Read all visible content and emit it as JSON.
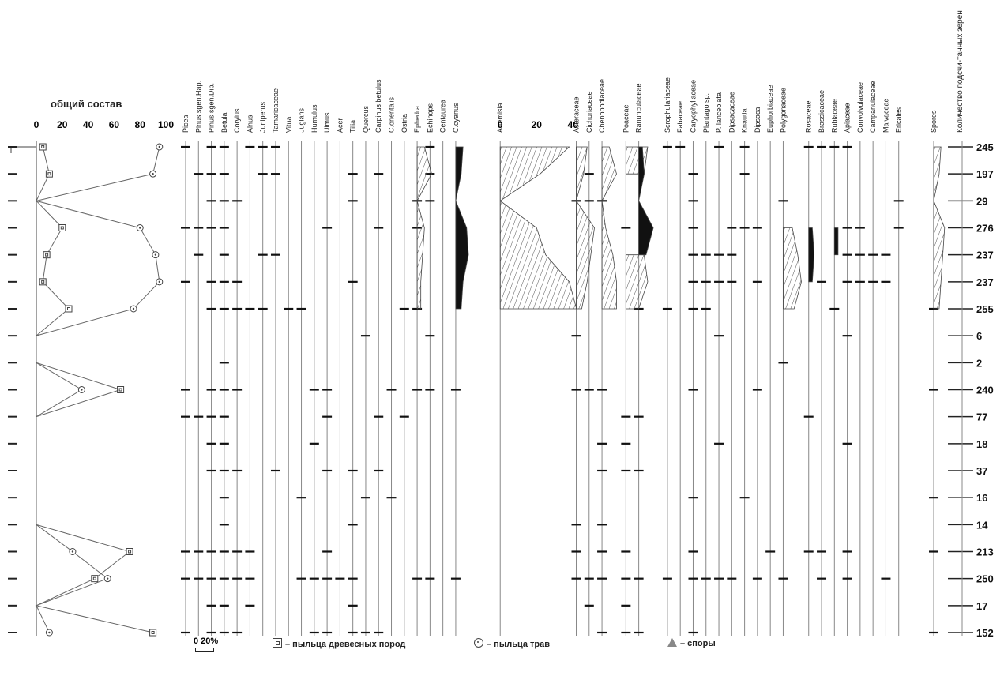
{
  "chart_data": {
    "type": "pollen-diagram",
    "summary_panel": {
      "title": "общий состав",
      "ticks": [
        "0",
        "20",
        "40",
        "60",
        "80",
        "100"
      ],
      "tree_pollen": [
        5,
        10,
        0,
        20,
        8,
        5,
        25,
        0,
        0,
        65,
        0,
        0,
        0,
        0,
        0,
        72,
        45,
        0,
        90
      ],
      "herb_pollen": [
        95,
        90,
        0,
        80,
        92,
        95,
        75,
        0,
        0,
        35,
        0,
        0,
        0,
        0,
        0,
        28,
        55,
        0,
        10
      ],
      "spores": [
        0,
        0,
        0,
        0,
        2,
        0,
        0,
        0,
        0,
        0,
        0,
        0,
        0,
        0,
        0,
        0,
        0,
        0,
        0
      ],
      "tree_pollen_row_labels": [
        "",
        "",
        "",
        "",
        "",
        "",
        "",
        "",
        "",
        "",
        "",
        "",
        "",
        "",
        "",
        "",
        "",
        "",
        ""
      ]
    },
    "taxa": [
      "Picea",
      "Pinus sgen.Hap.",
      "Pinus sgen.Dip.",
      "Betula",
      "Corylus",
      "Alnus",
      "Juniperus",
      "Tamaricaceae",
      "Vitua",
      "Juglans",
      "Humulus",
      "Ulmus",
      "Acer",
      "Tilia",
      "Quercus",
      "Carpinus betulus",
      "C.orientalis",
      "Ostria",
      "Ephedra",
      "Echinops",
      "Centaurea",
      "C.cyanus",
      "Artemisia",
      "Asteraceae",
      "Cichoriaceae",
      "Chenopodiaceae",
      "Poaceae",
      "Ranunculaceae",
      "Scrophulariaceae",
      "Fabaceae",
      "Caryophyllaceae",
      "Plantago sp.",
      "P. lanceolata",
      "Dipsacaceae",
      "Knautia",
      "Dipsaca",
      "Euphorbiaceae",
      "Polygonaceae",
      "Rosaceae",
      "Brassicaceae",
      "Rubiaceae",
      "Apiaceae",
      "Convolvulaceae",
      "Campanulaceae",
      "Malvaceae",
      "Ericales",
      "Spores"
    ],
    "artemisia_ticks": [
      "0",
      "20",
      "40"
    ],
    "count_header": "Количество подсчи-танных зерен",
    "counts": [
      "245",
      "197",
      "29",
      "276",
      "237",
      "237",
      "255",
      "6",
      "2",
      "240",
      "77",
      "18",
      "37",
      "16",
      "14",
      "213",
      "250",
      "17",
      "152"
    ],
    "presence": {
      "Picea": [
        1,
        0,
        0,
        1,
        0,
        1,
        0,
        0,
        0,
        1,
        1,
        0,
        0,
        0,
        0,
        1,
        1,
        0,
        1
      ],
      "Pinus sgen.Hap.": [
        0,
        1,
        0,
        1,
        1,
        0,
        0,
        0,
        0,
        0,
        1,
        0,
        0,
        0,
        0,
        1,
        1,
        0,
        0
      ],
      "Pinus sgen.Dip.": [
        1,
        1,
        1,
        1,
        0,
        1,
        1,
        0,
        0,
        1,
        1,
        1,
        1,
        0,
        0,
        1,
        1,
        1,
        1
      ],
      "Betula": [
        1,
        1,
        1,
        1,
        1,
        1,
        1,
        0,
        1,
        1,
        1,
        1,
        1,
        1,
        1,
        1,
        1,
        1,
        1
      ],
      "Corylus": [
        0,
        0,
        1,
        0,
        0,
        1,
        1,
        0,
        0,
        1,
        0,
        0,
        1,
        0,
        0,
        1,
        1,
        0,
        1
      ],
      "Alnus": [
        1,
        0,
        0,
        0,
        0,
        0,
        1,
        0,
        0,
        0,
        0,
        0,
        0,
        0,
        0,
        1,
        1,
        1,
        0
      ],
      "Juniperus": [
        1,
        1,
        0,
        0,
        1,
        0,
        1,
        0,
        0,
        0,
        0,
        0,
        0,
        0,
        0,
        0,
        0,
        0,
        0
      ],
      "Tamaricaceae": [
        1,
        1,
        0,
        0,
        1,
        0,
        0,
        0,
        0,
        0,
        0,
        0,
        1,
        0,
        0,
        0,
        0,
        0,
        0
      ],
      "Vitua": [
        0,
        0,
        0,
        0,
        0,
        0,
        1,
        0,
        0,
        0,
        0,
        0,
        0,
        0,
        0,
        0,
        0,
        0,
        0
      ],
      "Juglans": [
        0,
        0,
        0,
        0,
        0,
        0,
        1,
        0,
        0,
        0,
        0,
        0,
        0,
        1,
        0,
        0,
        1,
        0,
        0
      ],
      "Humulus": [
        0,
        0,
        0,
        0,
        0,
        0,
        0,
        0,
        0,
        1,
        0,
        1,
        0,
        0,
        0,
        0,
        1,
        0,
        1
      ],
      "Ulmus": [
        0,
        0,
        0,
        1,
        0,
        0,
        0,
        0,
        0,
        1,
        1,
        0,
        1,
        0,
        0,
        1,
        1,
        0,
        1
      ],
      "Acer": [
        0,
        0,
        0,
        0,
        0,
        0,
        0,
        0,
        0,
        0,
        0,
        0,
        0,
        0,
        0,
        0,
        1,
        0,
        0
      ],
      "Tilia": [
        0,
        1,
        1,
        0,
        0,
        1,
        0,
        0,
        0,
        0,
        0,
        0,
        1,
        0,
        1,
        0,
        1,
        1,
        1
      ],
      "Quercus": [
        0,
        0,
        0,
        0,
        0,
        0,
        0,
        1,
        0,
        0,
        0,
        0,
        0,
        1,
        0,
        0,
        0,
        0,
        1
      ],
      "Carpinus betulus": [
        0,
        1,
        0,
        1,
        0,
        0,
        0,
        0,
        0,
        0,
        1,
        0,
        1,
        0,
        0,
        0,
        0,
        0,
        1
      ],
      "C.orientalis": [
        0,
        0,
        0,
        0,
        0,
        0,
        0,
        0,
        0,
        1,
        0,
        0,
        0,
        1,
        0,
        0,
        0,
        0,
        0
      ],
      "Ostria": [
        0,
        0,
        0,
        0,
        0,
        0,
        1,
        0,
        0,
        0,
        1,
        0,
        0,
        0,
        0,
        0,
        0,
        0,
        0
      ],
      "Ephedra": [
        0,
        0,
        1,
        1,
        0,
        0,
        1,
        0,
        0,
        1,
        0,
        0,
        0,
        0,
        0,
        0,
        1,
        0,
        0
      ],
      "Echinops": [
        1,
        1,
        1,
        0,
        0,
        0,
        0,
        1,
        0,
        1,
        0,
        0,
        0,
        0,
        0,
        0,
        1,
        0,
        0
      ],
      "C.cyanus": [
        0,
        0,
        0,
        0,
        0,
        0,
        0,
        0,
        0,
        1,
        0,
        0,
        0,
        0,
        0,
        0,
        1,
        0,
        0
      ],
      "Asteraceae": [
        0,
        0,
        1,
        0,
        0,
        0,
        0,
        1,
        0,
        1,
        0,
        0,
        0,
        0,
        1,
        1,
        1,
        0,
        0
      ],
      "Cichoriaceae": [
        0,
        1,
        1,
        0,
        0,
        0,
        0,
        0,
        0,
        1,
        0,
        0,
        0,
        0,
        0,
        0,
        1,
        1,
        0
      ],
      "Chenopodiaceae": [
        0,
        0,
        1,
        0,
        0,
        0,
        0,
        0,
        0,
        1,
        0,
        1,
        1,
        0,
        1,
        1,
        1,
        0,
        1
      ],
      "Poaceae": [
        0,
        0,
        0,
        1,
        0,
        0,
        0,
        0,
        0,
        0,
        1,
        1,
        1,
        0,
        0,
        1,
        1,
        1,
        1
      ],
      "Ranunculaceae": [
        0,
        0,
        0,
        0,
        0,
        0,
        1,
        0,
        0,
        0,
        1,
        0,
        1,
        0,
        0,
        0,
        1,
        0,
        1
      ],
      "Scrophulariaceae": [
        1,
        0,
        0,
        0,
        0,
        0,
        1,
        0,
        0,
        0,
        0,
        0,
        0,
        0,
        0,
        0,
        1,
        0,
        0
      ],
      "Fabaceae": [
        1,
        0,
        0,
        0,
        0,
        0,
        0,
        0,
        0,
        0,
        0,
        0,
        0,
        0,
        0,
        0,
        0,
        0,
        0
      ],
      "Caryophyllaceae": [
        0,
        1,
        1,
        1,
        1,
        1,
        1,
        0,
        0,
        1,
        0,
        0,
        0,
        1,
        0,
        1,
        1,
        0,
        1
      ],
      "Plantago sp.": [
        0,
        0,
        0,
        0,
        1,
        1,
        1,
        0,
        0,
        0,
        0,
        0,
        0,
        0,
        0,
        0,
        1,
        0,
        0
      ],
      "P. lanceolata": [
        1,
        0,
        0,
        0,
        1,
        1,
        0,
        1,
        0,
        0,
        0,
        1,
        0,
        0,
        0,
        0,
        1,
        0,
        0
      ],
      "Dipsacaceae": [
        0,
        0,
        0,
        1,
        1,
        1,
        0,
        0,
        0,
        0,
        0,
        0,
        0,
        0,
        0,
        0,
        1,
        0,
        0
      ],
      "Knautia": [
        1,
        1,
        0,
        1,
        0,
        0,
        0,
        0,
        0,
        0,
        0,
        0,
        0,
        1,
        0,
        0,
        0,
        0,
        0
      ],
      "Dipsaca": [
        0,
        0,
        0,
        1,
        0,
        1,
        0,
        0,
        0,
        1,
        0,
        0,
        0,
        0,
        0,
        0,
        1,
        0,
        0
      ],
      "Euphorbiaceae": [
        0,
        0,
        0,
        0,
        0,
        0,
        0,
        0,
        0,
        0,
        0,
        0,
        0,
        0,
        0,
        1,
        0,
        0,
        0
      ],
      "Polygonaceae": [
        0,
        0,
        1,
        0,
        0,
        0,
        0,
        0,
        1,
        0,
        0,
        0,
        0,
        0,
        0,
        0,
        1,
        0,
        0
      ],
      "Rosaceae": [
        1,
        0,
        0,
        0,
        0,
        0,
        0,
        0,
        0,
        0,
        1,
        0,
        0,
        0,
        0,
        1,
        0,
        0,
        0
      ],
      "Brassicaceae": [
        1,
        0,
        0,
        0,
        0,
        1,
        0,
        0,
        0,
        0,
        0,
        0,
        0,
        0,
        0,
        1,
        1,
        0,
        0
      ],
      "Rubiaceae": [
        1,
        0,
        0,
        0,
        0,
        0,
        1,
        0,
        0,
        0,
        0,
        0,
        0,
        0,
        0,
        0,
        0,
        0,
        0
      ],
      "Apiaceae": [
        1,
        0,
        0,
        1,
        1,
        1,
        0,
        1,
        0,
        0,
        0,
        1,
        0,
        0,
        0,
        1,
        1,
        0,
        0
      ],
      "Convolvulaceae": [
        0,
        0,
        0,
        1,
        1,
        1,
        0,
        0,
        0,
        0,
        0,
        0,
        0,
        0,
        0,
        0,
        0,
        0,
        0
      ],
      "Campanulaceae": [
        0,
        0,
        0,
        0,
        1,
        1,
        0,
        0,
        0,
        0,
        0,
        0,
        0,
        0,
        0,
        0,
        0,
        0,
        0
      ],
      "Malvaceae": [
        0,
        0,
        0,
        0,
        1,
        1,
        0,
        0,
        0,
        0,
        0,
        0,
        0,
        0,
        0,
        0,
        1,
        0,
        0
      ],
      "Ericales": [
        0,
        0,
        1,
        1,
        0,
        0,
        0,
        0,
        0,
        0,
        0,
        0,
        0,
        0,
        0,
        0,
        0,
        0,
        0
      ],
      "Spores": [
        0,
        0,
        0,
        0,
        0,
        0,
        1,
        0,
        0,
        1,
        0,
        0,
        0,
        1,
        0,
        1,
        0,
        0,
        1
      ]
    },
    "curves": {
      "Ephedra": {
        "fill": "hatch",
        "values": [
          4,
          8,
          0,
          4,
          3,
          2,
          2,
          0,
          0,
          0,
          0,
          0,
          0,
          0,
          0,
          0,
          0,
          0,
          0
        ]
      },
      "Centaurea": {
        "fill": "black",
        "values": [
          0,
          0,
          0,
          5,
          0,
          0,
          0,
          0,
          0,
          0,
          0,
          0,
          0,
          0,
          0,
          0,
          0,
          0,
          0
        ]
      },
      "C.cyanus": {
        "fill": "black",
        "values": [
          4,
          3,
          0,
          6,
          7,
          4,
          3,
          0,
          0,
          0,
          0,
          0,
          0,
          0,
          0,
          0,
          0,
          0,
          0
        ]
      },
      "Artemisia": {
        "fill": "hatch",
        "values": [
          38,
          22,
          0,
          20,
          25,
          38,
          42,
          0,
          0,
          0,
          0,
          0,
          0,
          0,
          0,
          0,
          0,
          0,
          0
        ]
      },
      "Asteraceae": {
        "fill": "hatch",
        "values": [
          6,
          4,
          0,
          10,
          8,
          6,
          3,
          0,
          0,
          0,
          0,
          0,
          0,
          0,
          0,
          0,
          0,
          0,
          0
        ]
      },
      "Cichoriaceae": {
        "fill": "black",
        "values": [
          2,
          0,
          0,
          4,
          0,
          0,
          0,
          0,
          0,
          0,
          0,
          0,
          0,
          0,
          0,
          0,
          0,
          0,
          0
        ]
      },
      "Chenopodiaceae": {
        "fill": "hatch",
        "values": [
          4,
          8,
          0,
          2,
          6,
          8,
          8,
          0,
          0,
          0,
          0,
          0,
          0,
          0,
          0,
          0,
          0,
          0,
          0
        ]
      },
      "Poaceae": {
        "fill": "hatch",
        "values": [
          12,
          10,
          0,
          0,
          10,
          12,
          7,
          0,
          0,
          8,
          0,
          0,
          0,
          0,
          0,
          0,
          0,
          0,
          0
        ]
      },
      "Ranunculaceae": {
        "fill": "black",
        "values": [
          2,
          3,
          0,
          8,
          4,
          0,
          0,
          0,
          0,
          6,
          0,
          0,
          0,
          0,
          0,
          0,
          4,
          0,
          0
        ]
      },
      "Polygonaceae": {
        "fill": "hatch",
        "values": [
          0,
          0,
          0,
          5,
          8,
          10,
          6,
          0,
          0,
          0,
          0,
          0,
          0,
          0,
          0,
          0,
          0,
          0,
          0
        ]
      },
      "Rosaceae": {
        "fill": "black",
        "values": [
          0,
          0,
          0,
          2,
          3,
          2,
          0,
          0,
          0,
          0,
          0,
          0,
          0,
          0,
          0,
          0,
          0,
          0,
          0
        ]
      },
      "Rubiaceae": {
        "fill": "black",
        "values": [
          0,
          0,
          0,
          2,
          2,
          0,
          0,
          0,
          0,
          0,
          0,
          0,
          0,
          0,
          0,
          0,
          0,
          0,
          0
        ]
      },
      "Spores": {
        "fill": "hatch",
        "values": [
          4,
          3,
          0,
          6,
          5,
          4,
          3,
          0,
          0,
          0,
          0,
          0,
          0,
          0,
          0,
          0,
          0,
          0,
          0
        ]
      }
    }
  },
  "legend": {
    "scale_label": "0  20%",
    "tree_label": "– пыльца древесных пород",
    "herb_label": "– пыльца трав",
    "spore_label": "– споры"
  },
  "colors": {
    "ink": "#1a1a1a",
    "line": "#777777"
  }
}
